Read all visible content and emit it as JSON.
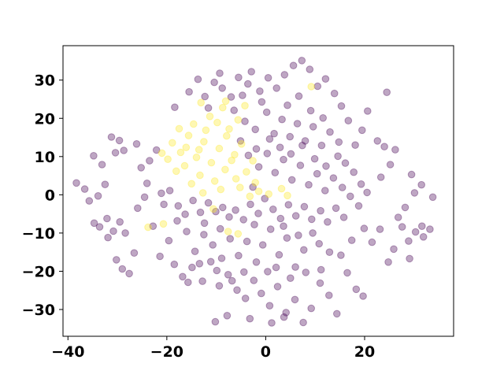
{
  "chart_data": {
    "type": "scatter",
    "title": "",
    "xlabel": "",
    "ylabel": "",
    "xlim": [
      -41,
      38
    ],
    "ylim": [
      -37,
      39
    ],
    "xticks": [
      -40,
      -20,
      0,
      20
    ],
    "xtick_labels": [
      "−40",
      "−20",
      "0",
      "20"
    ],
    "yticks": [
      -30,
      -20,
      -10,
      0,
      10,
      20,
      30
    ],
    "ytick_labels": [
      "−30",
      "−20",
      "−10",
      "0",
      "10",
      "20",
      "30"
    ],
    "grid": false,
    "legend": "none",
    "point_alpha": 0.35,
    "series": [
      {
        "color": "#440154",
        "points": [
          [
            -38.3,
            3.1
          ],
          [
            -36.6,
            1.5
          ],
          [
            -34.8,
            10.2
          ],
          [
            -33.1,
            7.9
          ],
          [
            -35.7,
            -1.6
          ],
          [
            -33.9,
            -0.3
          ],
          [
            -32.5,
            2.7
          ],
          [
            -31.2,
            15.1
          ],
          [
            -29.6,
            14.2
          ],
          [
            -30.4,
            11.0
          ],
          [
            -28.7,
            11.6
          ],
          [
            -26.1,
            13.3
          ],
          [
            -25.2,
            7.1
          ],
          [
            -24.0,
            3.0
          ],
          [
            -23.5,
            8.9
          ],
          [
            -22.1,
            11.7
          ],
          [
            -24.5,
            -0.6
          ],
          [
            -21.1,
            0.4
          ],
          [
            -20.6,
            -2.5
          ],
          [
            -19.4,
            1.1
          ],
          [
            -33.6,
            -8.4
          ],
          [
            -32.1,
            -6.2
          ],
          [
            -30.8,
            -9.5
          ],
          [
            -29.5,
            -7.1
          ],
          [
            -31.9,
            -11.2
          ],
          [
            -28.4,
            -10.0
          ],
          [
            -34.7,
            -7.4
          ],
          [
            -30.2,
            -17.0
          ],
          [
            -29.0,
            -19.4
          ],
          [
            -27.6,
            -20.6
          ],
          [
            -26.6,
            -15.2
          ],
          [
            -25.9,
            -3.5
          ],
          [
            -22.8,
            -8.2
          ],
          [
            -21.4,
            -16.1
          ],
          [
            -19.6,
            -12.0
          ],
          [
            -17.7,
            -2.9
          ],
          [
            -16.3,
            -5.1
          ],
          [
            -14.7,
            -1.5
          ],
          [
            -13.2,
            -4.6
          ],
          [
            -11.6,
            -2.1
          ],
          [
            -10.1,
            -4.4
          ],
          [
            -8.7,
            -3.3
          ],
          [
            -7.4,
            -5.8
          ],
          [
            -12.4,
            -7.4
          ],
          [
            -9.2,
            -8.9
          ],
          [
            -6.1,
            -4.0
          ],
          [
            -4.5,
            -6.5
          ],
          [
            -3.1,
            -2.5
          ],
          [
            -1.5,
            -4.9
          ],
          [
            -0.2,
            -1.0
          ],
          [
            1.5,
            -3.8
          ],
          [
            3.0,
            -6.2
          ],
          [
            4.6,
            -2.6
          ],
          [
            6.1,
            -5.5
          ],
          [
            7.8,
            -3.1
          ],
          [
            9.3,
            -6.4
          ],
          [
            11.1,
            -4.2
          ],
          [
            12.5,
            -7.1
          ],
          [
            14.2,
            -3.5
          ],
          [
            15.8,
            -5.9
          ],
          [
            -18.5,
            -18.2
          ],
          [
            -16.8,
            -21.4
          ],
          [
            -14.9,
            -19.0
          ],
          [
            -12.8,
            -22.6
          ],
          [
            -11.1,
            -17.5
          ],
          [
            -9.4,
            -23.8
          ],
          [
            -7.6,
            -20.9
          ],
          [
            -5.8,
            -24.9
          ],
          [
            -4.1,
            -27.1
          ],
          [
            -2.4,
            -22.4
          ],
          [
            -0.9,
            -25.8
          ],
          [
            0.8,
            -29.0
          ],
          [
            2.4,
            -24.0
          ],
          [
            4.1,
            -30.8
          ],
          [
            5.9,
            -27.4
          ],
          [
            7.6,
            -33.4
          ],
          [
            9.2,
            -29.7
          ],
          [
            11.0,
            -23.1
          ],
          [
            12.8,
            -26.3
          ],
          [
            14.4,
            -31.1
          ],
          [
            -10.2,
            -33.2
          ],
          [
            -7.8,
            -31.6
          ],
          [
            -3.2,
            -32.4
          ],
          [
            1.2,
            -33.5
          ],
          [
            3.7,
            -32.0
          ],
          [
            16.5,
            -20.4
          ],
          [
            18.3,
            -24.7
          ],
          [
            19.7,
            -26.5
          ],
          [
            15.2,
            -15.8
          ],
          [
            17.4,
            -11.9
          ],
          [
            19.9,
            -8.8
          ],
          [
            21.5,
            -12.4
          ],
          [
            23.1,
            -9.0
          ],
          [
            24.8,
            -17.6
          ],
          [
            25.9,
            -14.2
          ],
          [
            27.6,
            -8.4
          ],
          [
            28.9,
            -12.1
          ],
          [
            30.3,
            -9.7
          ],
          [
            31.6,
            -8.2
          ],
          [
            33.2,
            -9.0
          ],
          [
            31.9,
            -11.0
          ],
          [
            29.1,
            -16.7
          ],
          [
            26.8,
            -5.9
          ],
          [
            28.2,
            -3.3
          ],
          [
            30.1,
            0.5
          ],
          [
            31.5,
            2.6
          ],
          [
            33.8,
            -0.6
          ],
          [
            29.5,
            5.3
          ],
          [
            25.2,
            7.9
          ],
          [
            23.3,
            4.6
          ],
          [
            26.2,
            11.8
          ],
          [
            24.0,
            12.6
          ],
          [
            22.6,
            14.1
          ],
          [
            24.5,
            26.8
          ],
          [
            20.6,
            21.9
          ],
          [
            19.5,
            16.9
          ],
          [
            18.1,
            13.0
          ],
          [
            16.7,
            19.4
          ],
          [
            15.3,
            23.2
          ],
          [
            13.9,
            26.5
          ],
          [
            12.1,
            30.3
          ],
          [
            10.5,
            28.4
          ],
          [
            8.9,
            32.8
          ],
          [
            7.3,
            35.1
          ],
          [
            5.6,
            33.8
          ],
          [
            3.8,
            31.4
          ],
          [
            2.2,
            27.9
          ],
          [
            0.5,
            30.6
          ],
          [
            -1.2,
            27.1
          ],
          [
            -2.9,
            32.2
          ],
          [
            -3.6,
            29.0
          ],
          [
            -5.5,
            30.7
          ],
          [
            -7.0,
            25.6
          ],
          [
            -8.8,
            27.9
          ],
          [
            -10.4,
            29.4
          ],
          [
            -12.3,
            25.7
          ],
          [
            -13.7,
            30.2
          ],
          [
            -15.5,
            26.9
          ],
          [
            -18.4,
            22.9
          ],
          [
            -11.6,
            22.7
          ],
          [
            -6.4,
            22.1
          ],
          [
            -4.2,
            19.2
          ],
          [
            -2.1,
            17.1
          ],
          [
            0.2,
            21.6
          ],
          [
            1.7,
            16.0
          ],
          [
            3.3,
            19.7
          ],
          [
            4.9,
            15.2
          ],
          [
            6.4,
            18.6
          ],
          [
            8.0,
            14.1
          ],
          [
            9.6,
            17.8
          ],
          [
            11.3,
            12.9
          ],
          [
            13.0,
            16.4
          ],
          [
            14.6,
            10.1
          ],
          [
            16.1,
            8.3
          ],
          [
            17.8,
            5.9
          ],
          [
            19.3,
            2.8
          ],
          [
            20.5,
            0.6
          ],
          [
            18.8,
            -2.9
          ],
          [
            17.1,
            -0.4
          ],
          [
            15.5,
            1.9
          ],
          [
            13.7,
            4.4
          ],
          [
            12.0,
            1.1
          ],
          [
            10.4,
            5.5
          ],
          [
            8.7,
            2.6
          ],
          [
            7.0,
            7.7
          ],
          [
            5.3,
            3.9
          ],
          [
            3.6,
            9.2
          ],
          [
            1.9,
            5.8
          ],
          [
            0.3,
            10.8
          ],
          [
            -1.4,
            7.3
          ],
          [
            -1.9,
            12.0
          ],
          [
            0.8,
            14.6
          ],
          [
            2.9,
            12.4
          ],
          [
            5.1,
            10.7
          ],
          [
            7.4,
            12.9
          ],
          [
            9.9,
            9.4
          ],
          [
            12.2,
            7.5
          ],
          [
            14.8,
            13.8
          ],
          [
            4.4,
            23.4
          ],
          [
            6.7,
            25.8
          ],
          [
            9.1,
            22.0
          ],
          [
            11.6,
            20.1
          ],
          [
            -0.8,
            24.3
          ],
          [
            -4.7,
            26.0
          ],
          [
            -9.3,
            31.8
          ],
          [
            -5.1,
            14.1
          ],
          [
            -3.5,
            10.3
          ],
          [
            -2.6,
            2.0
          ],
          [
            -0.6,
            -13.1
          ],
          [
            1.0,
            -9.0
          ],
          [
            2.7,
            -15.7
          ],
          [
            4.3,
            -11.3
          ],
          [
            6.0,
            -18.9
          ],
          [
            7.7,
            -14.4
          ],
          [
            9.5,
            -10.0
          ],
          [
            11.2,
            -19.6
          ],
          [
            12.9,
            -15.0
          ],
          [
            -1.9,
            -17.6
          ],
          [
            -3.8,
            -12.2
          ],
          [
            -5.5,
            -15.9
          ],
          [
            -7.2,
            -11.5
          ],
          [
            -8.9,
            -16.6
          ],
          [
            -10.7,
            -13.1
          ],
          [
            -12.5,
            -10.4
          ],
          [
            -14.3,
            -14.8
          ],
          [
            -16.0,
            -9.6
          ],
          [
            -17.9,
            -6.8
          ],
          [
            -2.3,
            -7.8
          ],
          [
            0.4,
            -20.1
          ],
          [
            2.1,
            -19.0
          ],
          [
            5.0,
            -21.8
          ],
          [
            8.1,
            -20.3
          ],
          [
            10.8,
            -12.8
          ],
          [
            3.6,
            -8.2
          ],
          [
            6.6,
            -10.6
          ],
          [
            -4.4,
            -20.2
          ],
          [
            -6.8,
            -22.5
          ],
          [
            -9.9,
            -19.8
          ],
          [
            -13.4,
            -18.0
          ],
          [
            -15.7,
            -22.9
          ]
        ]
      },
      {
        "color": "#fde725",
        "points": [
          [
            -18.9,
            13.6
          ],
          [
            -17.2,
            11.1
          ],
          [
            -15.6,
            15.5
          ],
          [
            -14.0,
            9.8
          ],
          [
            -12.5,
            13.9
          ],
          [
            -11.0,
            8.4
          ],
          [
            -9.4,
            12.1
          ],
          [
            -7.9,
            15.4
          ],
          [
            -6.3,
            10.5
          ],
          [
            -4.9,
            13.3
          ],
          [
            -16.4,
            7.6
          ],
          [
            -13.3,
            5.1
          ],
          [
            -10.3,
            3.6
          ],
          [
            -8.2,
            6.6
          ],
          [
            -6.0,
            4.2
          ],
          [
            -3.9,
            6.0
          ],
          [
            -2.1,
            3.2
          ],
          [
            -1.4,
            0.9
          ],
          [
            0.6,
            0.2
          ],
          [
            -3.2,
            -0.4
          ],
          [
            -19.8,
            9.3
          ],
          [
            -21.0,
            10.9
          ],
          [
            -17.5,
            17.3
          ],
          [
            -14.6,
            18.5
          ],
          [
            -12.1,
            16.9
          ],
          [
            -9.8,
            18.9
          ],
          [
            -7.4,
            17.2
          ],
          [
            -5.6,
            19.6
          ],
          [
            -8.7,
            22.8
          ],
          [
            -11.3,
            20.5
          ],
          [
            -13.5,
            11.8
          ],
          [
            -15.0,
            2.9
          ],
          [
            -12.7,
            0.5
          ],
          [
            -9.1,
            1.4
          ],
          [
            -5.2,
            1.9
          ],
          [
            -20.7,
            -7.6
          ],
          [
            -23.8,
            -8.5
          ],
          [
            -10.6,
            -3.7
          ],
          [
            -7.6,
            -9.6
          ],
          [
            -5.6,
            -10.2
          ],
          [
            -8.1,
            24.5
          ],
          [
            -13.1,
            24.1
          ],
          [
            3.2,
            1.6
          ],
          [
            4.4,
            -0.2
          ],
          [
            9.2,
            28.3
          ],
          [
            -4.2,
            23.3
          ],
          [
            -16.1,
            12.4
          ],
          [
            -18.1,
            6.2
          ],
          [
            -6.9,
            9.0
          ],
          [
            -2.6,
            8.9
          ]
        ]
      }
    ]
  }
}
